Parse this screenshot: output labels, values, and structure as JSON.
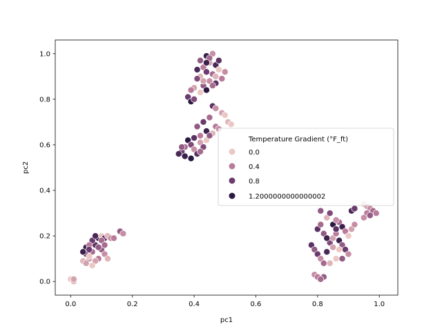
{
  "chart_data": {
    "type": "scatter",
    "xlabel": "pc1",
    "ylabel": "pc2",
    "xlim": [
      -0.05,
      1.06
    ],
    "ylim": [
      -0.06,
      1.06
    ],
    "x_ticks": [
      "0.0",
      "0.2",
      "0.4",
      "0.6",
      "0.8",
      "1.0"
    ],
    "y_ticks": [
      "0.0",
      "0.2",
      "0.4",
      "0.6",
      "0.8",
      "1.0"
    ],
    "grid": false,
    "legend": {
      "title": "Temperature Gradient (°F_ft)",
      "placement": "center-right",
      "entries": [
        {
          "label": "0.0",
          "color": "#ebc8c4"
        },
        {
          "label": "0.4",
          "color": "#b97b9a"
        },
        {
          "label": "0.8",
          "color": "#6b3a6e"
        },
        {
          "label": "1.2000000000000002",
          "color": "#2b1840"
        }
      ]
    },
    "colors": {
      "low": "#ebc8c4",
      "mid_low": "#b97b9a",
      "mid_high": "#6b3a6e",
      "high": "#2b1840"
    },
    "points": [
      [
        0.0,
        0.01,
        0.0
      ],
      [
        0.01,
        0.0,
        0.1
      ],
      [
        0.01,
        0.01,
        0.2
      ],
      [
        0.04,
        0.09,
        0.1
      ],
      [
        0.05,
        0.12,
        0.7
      ],
      [
        0.06,
        0.1,
        0.3
      ],
      [
        0.07,
        0.13,
        0.5
      ],
      [
        0.05,
        0.15,
        1.1
      ],
      [
        0.08,
        0.16,
        0.9
      ],
      [
        0.06,
        0.11,
        0.0
      ],
      [
        0.09,
        0.1,
        0.4
      ],
      [
        0.1,
        0.14,
        0.6
      ],
      [
        0.07,
        0.18,
        0.8
      ],
      [
        0.08,
        0.09,
        0.2
      ],
      [
        0.11,
        0.12,
        0.3
      ],
      [
        0.09,
        0.19,
        1.2
      ],
      [
        0.1,
        0.2,
        0.0
      ],
      [
        0.11,
        0.19,
        0.9
      ],
      [
        0.12,
        0.2,
        0.1
      ],
      [
        0.08,
        0.2,
        1.0
      ],
      [
        0.1,
        0.18,
        0.5
      ],
      [
        0.06,
        0.16,
        0.4
      ],
      [
        0.05,
        0.08,
        0.2
      ],
      [
        0.12,
        0.1,
        0.1
      ],
      [
        0.09,
        0.15,
        0.6
      ],
      [
        0.04,
        0.13,
        1.1
      ],
      [
        0.07,
        0.07,
        0.0
      ],
      [
        0.13,
        0.19,
        0.3
      ],
      [
        0.14,
        0.19,
        0.4
      ],
      [
        0.16,
        0.22,
        0.6
      ],
      [
        0.17,
        0.21,
        0.3
      ],
      [
        0.11,
        0.16,
        0.5
      ],
      [
        0.06,
        0.14,
        0.8
      ],
      [
        0.44,
        0.99,
        1.1
      ],
      [
        0.46,
        1.0,
        0.3
      ],
      [
        0.42,
        0.97,
        0.6
      ],
      [
        0.45,
        0.96,
        0.2
      ],
      [
        0.47,
        0.95,
        1.0
      ],
      [
        0.43,
        0.94,
        0.4
      ],
      [
        0.44,
        0.92,
        0.8
      ],
      [
        0.48,
        0.93,
        0.0
      ],
      [
        0.46,
        0.91,
        0.5
      ],
      [
        0.42,
        0.9,
        0.1
      ],
      [
        0.41,
        0.89,
        0.7
      ],
      [
        0.45,
        0.88,
        0.3
      ],
      [
        0.43,
        0.86,
        0.6
      ],
      [
        0.4,
        0.85,
        0.2
      ],
      [
        0.47,
        0.87,
        0.9
      ],
      [
        0.44,
        0.84,
        1.2
      ],
      [
        0.42,
        0.83,
        0.0
      ],
      [
        0.39,
        0.84,
        0.4
      ],
      [
        0.46,
        0.86,
        0.5
      ],
      [
        0.49,
        0.89,
        0.4
      ],
      [
        0.5,
        0.92,
        0.3
      ],
      [
        0.48,
        0.97,
        0.9
      ],
      [
        0.41,
        0.93,
        1.0
      ],
      [
        0.38,
        0.81,
        0.8
      ],
      [
        0.39,
        0.79,
        1.2
      ],
      [
        0.4,
        0.8,
        0.7
      ],
      [
        0.45,
        0.98,
        0.5
      ],
      [
        0.44,
        0.96,
        1.1
      ],
      [
        0.47,
        0.9,
        0.1
      ],
      [
        0.43,
        0.88,
        0.2
      ],
      [
        0.46,
        0.77,
        0.9
      ],
      [
        0.47,
        0.76,
        0.3
      ],
      [
        0.49,
        0.74,
        0.2
      ],
      [
        0.5,
        0.73,
        0.0
      ],
      [
        0.51,
        0.7,
        0.1
      ],
      [
        0.52,
        0.69,
        0.0
      ],
      [
        0.45,
        0.72,
        0.5
      ],
      [
        0.43,
        0.7,
        0.8
      ],
      [
        0.41,
        0.68,
        0.6
      ],
      [
        0.44,
        0.66,
        1.1
      ],
      [
        0.42,
        0.64,
        0.4
      ],
      [
        0.4,
        0.63,
        0.9
      ],
      [
        0.38,
        0.62,
        1.2
      ],
      [
        0.39,
        0.6,
        0.7
      ],
      [
        0.37,
        0.59,
        0.5
      ],
      [
        0.36,
        0.57,
        0.8
      ],
      [
        0.35,
        0.56,
        1.0
      ],
      [
        0.37,
        0.55,
        1.1
      ],
      [
        0.4,
        0.58,
        0.3
      ],
      [
        0.42,
        0.61,
        0.2
      ],
      [
        0.44,
        0.62,
        0.0
      ],
      [
        0.46,
        0.65,
        0.1
      ],
      [
        0.47,
        0.68,
        0.4
      ],
      [
        0.45,
        0.64,
        0.6
      ],
      [
        0.41,
        0.56,
        0.9
      ],
      [
        0.39,
        0.54,
        1.2
      ],
      [
        0.43,
        0.59,
        0.7
      ],
      [
        0.48,
        0.67,
        0.3
      ],
      [
        0.36,
        0.59,
        0.6
      ],
      [
        0.42,
        0.57,
        0.5
      ],
      [
        0.79,
        0.03,
        0.3
      ],
      [
        0.8,
        0.02,
        0.4
      ],
      [
        0.82,
        0.02,
        0.6
      ],
      [
        0.81,
        0.01,
        0.5
      ],
      [
        0.78,
        0.16,
        0.9
      ],
      [
        0.79,
        0.14,
        0.6
      ],
      [
        0.8,
        0.12,
        0.8
      ],
      [
        0.81,
        0.1,
        0.3
      ],
      [
        0.82,
        0.08,
        0.5
      ],
      [
        0.83,
        0.13,
        1.0
      ],
      [
        0.84,
        0.17,
        0.7
      ],
      [
        0.85,
        0.19,
        0.2
      ],
      [
        0.86,
        0.21,
        0.4
      ],
      [
        0.87,
        0.18,
        1.1
      ],
      [
        0.88,
        0.16,
        0.6
      ],
      [
        0.89,
        0.14,
        0.8
      ],
      [
        0.9,
        0.12,
        0.3
      ],
      [
        0.86,
        0.1,
        0.0
      ],
      [
        0.84,
        0.08,
        0.1
      ],
      [
        0.85,
        0.25,
        1.2
      ],
      [
        0.86,
        0.23,
        0.9
      ],
      [
        0.87,
        0.26,
        0.5
      ],
      [
        0.88,
        0.24,
        1.1
      ],
      [
        0.89,
        0.22,
        0.4
      ],
      [
        0.9,
        0.2,
        0.0
      ],
      [
        0.91,
        0.23,
        0.2
      ],
      [
        0.92,
        0.25,
        0.3
      ],
      [
        0.91,
        0.31,
        1.0
      ],
      [
        0.92,
        0.32,
        0.8
      ],
      [
        0.8,
        0.23,
        0.9
      ],
      [
        0.81,
        0.25,
        0.5
      ],
      [
        0.82,
        0.21,
        0.6
      ],
      [
        0.83,
        0.28,
        0.1
      ],
      [
        0.84,
        0.3,
        0.7
      ],
      [
        0.81,
        0.31,
        0.6
      ],
      [
        0.86,
        0.27,
        0.3
      ],
      [
        0.95,
        0.34,
        0.1
      ],
      [
        0.96,
        0.33,
        0.2
      ],
      [
        0.97,
        0.32,
        0.3
      ],
      [
        0.98,
        0.31,
        0.5
      ],
      [
        0.96,
        0.3,
        0.4
      ],
      [
        0.97,
        0.29,
        0.6
      ],
      [
        0.99,
        0.3,
        0.4
      ],
      [
        0.95,
        0.28,
        0.3
      ],
      [
        0.87,
        0.14,
        0.0
      ],
      [
        0.88,
        0.1,
        0.6
      ],
      [
        0.83,
        0.19,
        1.1
      ],
      [
        0.85,
        0.15,
        0.2
      ]
    ]
  }
}
